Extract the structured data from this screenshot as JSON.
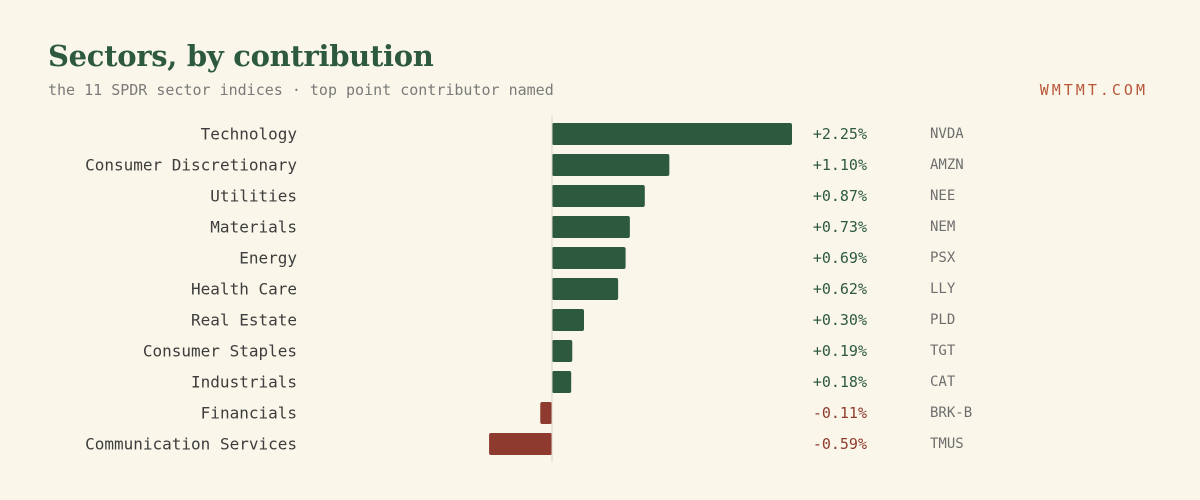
{
  "header": {
    "title": "Sectors, by contribution",
    "subtitle": "the 11 SPDR sector indices · top point contributor named",
    "brand": "WMTMT.COM"
  },
  "colors": {
    "background": "#faf7ea",
    "positive": "#2d5a3f",
    "negative": "#8f3a2e",
    "title": "#2d5a3f",
    "brand": "#b8573a"
  },
  "chart_data": {
    "type": "bar",
    "orientation": "horizontal",
    "categories": [
      "Technology",
      "Consumer Discretionary",
      "Utilities",
      "Materials",
      "Energy",
      "Health Care",
      "Real Estate",
      "Consumer Staples",
      "Industrials",
      "Financials",
      "Communication Services"
    ],
    "values": [
      2.25,
      1.1,
      0.87,
      0.73,
      0.69,
      0.62,
      0.3,
      0.19,
      0.18,
      -0.11,
      -0.59
    ],
    "value_labels": [
      "+2.25%",
      "+1.10%",
      "+0.87%",
      "+0.73%",
      "+0.69%",
      "+0.62%",
      "+0.30%",
      "+0.19%",
      "+0.18%",
      "-0.11%",
      "-0.59%"
    ],
    "top_contributors": [
      "NVDA",
      "AMZN",
      "NEE",
      "NEM",
      "PSX",
      "LLY",
      "PLD",
      "TGT",
      "CAT",
      "BRK-B",
      "TMUS"
    ],
    "unit": "%",
    "xlim": [
      -0.59,
      2.25
    ],
    "grid": false,
    "legend": "none"
  }
}
